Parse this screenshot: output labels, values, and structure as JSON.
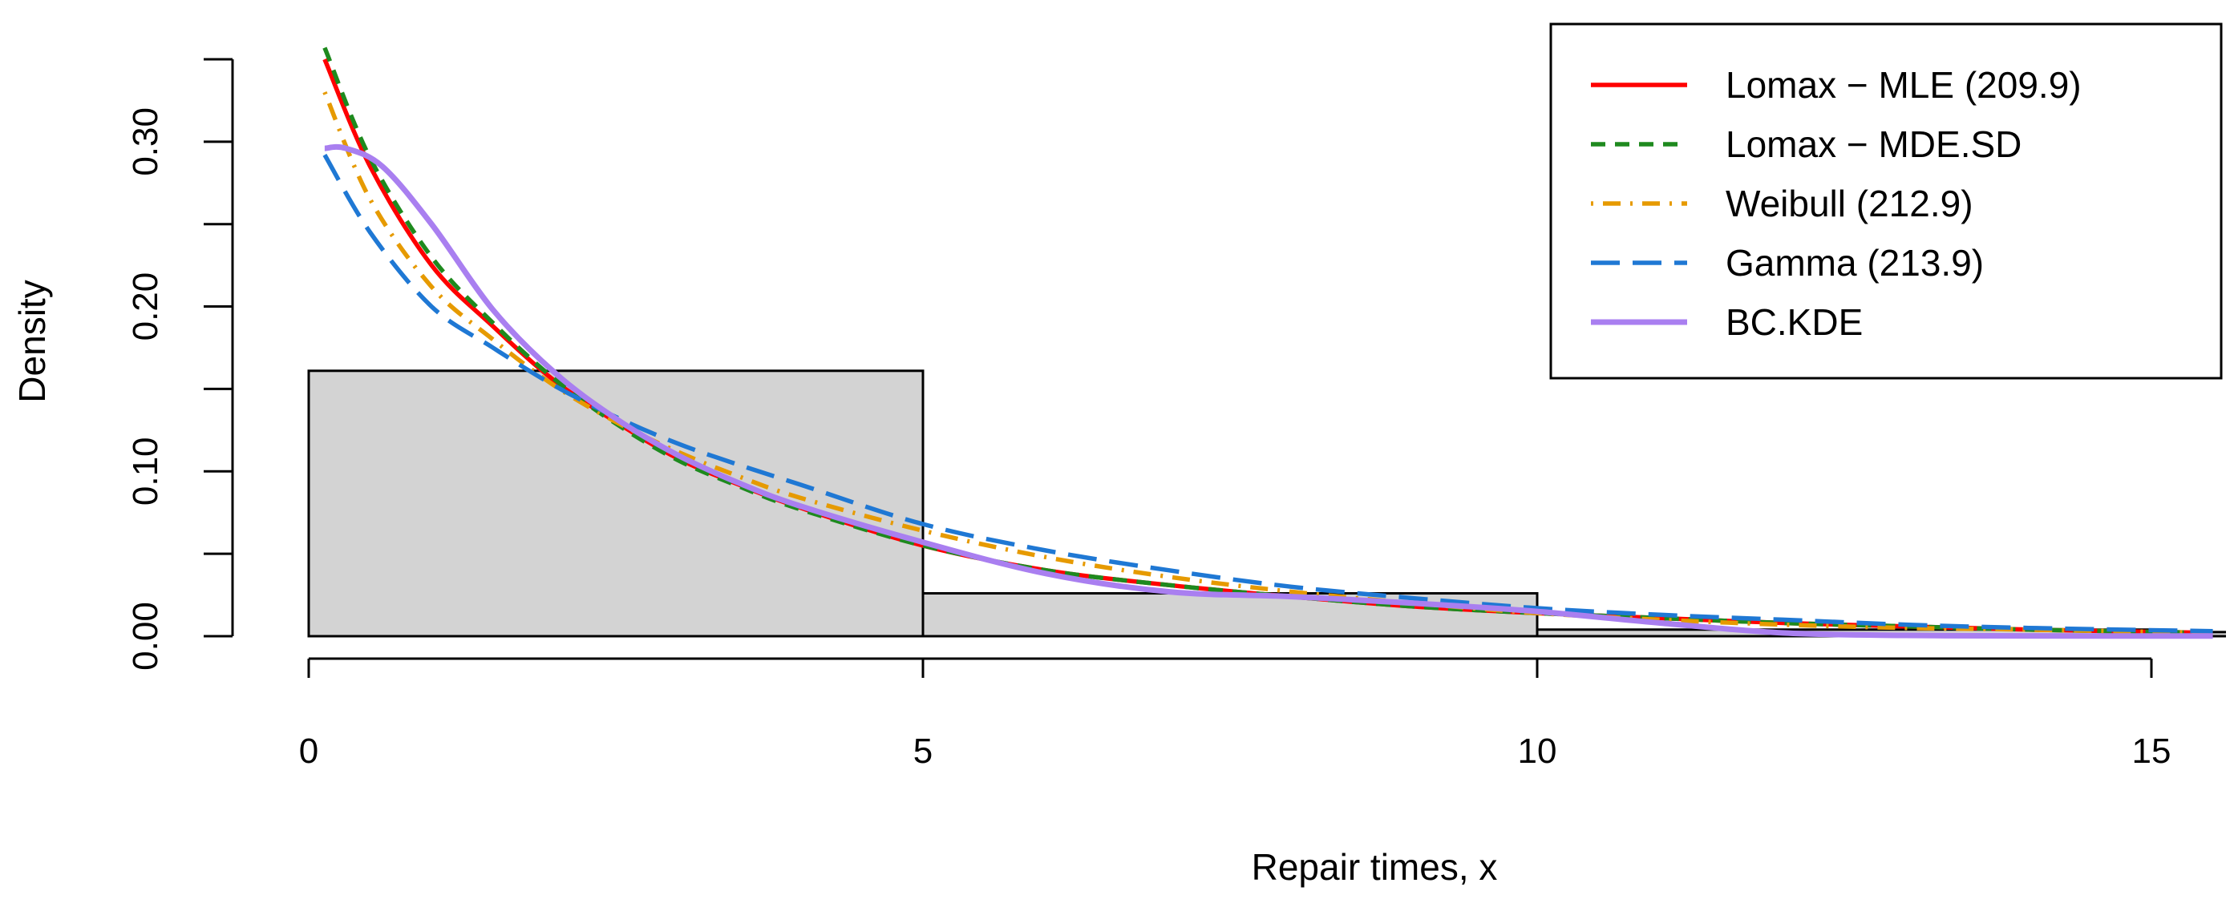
{
  "chart_data": {
    "type": "histogram",
    "title": "",
    "xlabel": "Repair times, x",
    "ylabel": "Density",
    "xlim": [
      0,
      15.5
    ],
    "ylim": [
      0,
      0.35
    ],
    "xticks": [
      0,
      5,
      10,
      15
    ],
    "xtick_labels": [
      "0",
      "5",
      "10",
      "15"
    ],
    "yticks": [
      0.0,
      0.05,
      0.1,
      0.15,
      0.2,
      0.25,
      0.3,
      0.35
    ],
    "ytick_labels": [
      "0.00",
      "",
      "0.10",
      "",
      "0.20",
      "",
      "0.30",
      ""
    ],
    "grid": false,
    "legend_position": "top-right",
    "histogram": {
      "bins": [
        [
          0,
          5
        ],
        [
          5,
          10
        ],
        [
          10,
          15
        ],
        [
          15,
          20
        ]
      ],
      "density": [
        0.161,
        0.026,
        0.004,
        0.0025
      ],
      "fill": "#d3d3d3",
      "edge": "#000000"
    },
    "series": [
      {
        "name": "Lomax − MLE (209.9)",
        "color": "#ff0000",
        "dash": "solid",
        "x": [
          0.13,
          0.5,
          1.0,
          1.5,
          2.0,
          2.5,
          3.0,
          3.5,
          4.0,
          5.0,
          6.0,
          7.0,
          8.0,
          9.0,
          10.0,
          11.0,
          12.0,
          13.0,
          14.0,
          15.5
        ],
        "y": [
          0.35,
          0.285,
          0.225,
          0.188,
          0.155,
          0.13,
          0.108,
          0.092,
          0.078,
          0.055,
          0.04,
          0.031,
          0.024,
          0.018,
          0.014,
          0.011,
          0.008,
          0.006,
          0.004,
          0.002
        ]
      },
      {
        "name": "Lomax − MDE.SD",
        "color": "#1e8a1e",
        "dash": "short",
        "x": [
          0.13,
          0.5,
          1.0,
          1.5,
          2.0,
          2.5,
          3.0,
          3.5,
          4.0,
          5.0,
          6.0,
          7.0,
          8.0,
          9.0,
          10.0,
          11.0,
          12.0,
          13.0,
          14.0,
          15.5
        ],
        "y": [
          0.357,
          0.29,
          0.23,
          0.19,
          0.156,
          0.129,
          0.107,
          0.091,
          0.077,
          0.055,
          0.04,
          0.031,
          0.024,
          0.018,
          0.014,
          0.011,
          0.008,
          0.006,
          0.004,
          0.002
        ]
      },
      {
        "name": "Weibull (212.9)",
        "color": "#e69a00",
        "dash": "dashdot",
        "x": [
          0.13,
          0.5,
          1.0,
          1.5,
          2.0,
          2.5,
          3.0,
          3.5,
          4.0,
          5.0,
          6.0,
          7.0,
          8.0,
          9.0,
          10.0,
          11.0,
          12.0,
          13.0,
          14.0,
          15.5
        ],
        "y": [
          0.33,
          0.265,
          0.212,
          0.18,
          0.152,
          0.13,
          0.112,
          0.097,
          0.084,
          0.064,
          0.048,
          0.036,
          0.027,
          0.02,
          0.014,
          0.01,
          0.007,
          0.005,
          0.004,
          0.002
        ]
      },
      {
        "name": "Gamma (213.9)",
        "color": "#1f78d4",
        "dash": "long",
        "x": [
          0.13,
          0.5,
          1.0,
          1.5,
          2.0,
          2.5,
          3.0,
          3.5,
          4.0,
          5.0,
          6.0,
          7.0,
          8.0,
          9.0,
          10.0,
          11.0,
          12.0,
          13.0,
          14.0,
          15.5
        ],
        "y": [
          0.292,
          0.245,
          0.2,
          0.175,
          0.152,
          0.133,
          0.117,
          0.104,
          0.092,
          0.068,
          0.052,
          0.04,
          0.03,
          0.023,
          0.017,
          0.013,
          0.01,
          0.007,
          0.005,
          0.003
        ]
      },
      {
        "name": "BC.KDE",
        "color": "#a97ff0",
        "dash": "solid",
        "x": [
          0.13,
          0.3,
          0.6,
          1.0,
          1.5,
          2.0,
          2.5,
          3.0,
          3.5,
          4.0,
          5.0,
          6.0,
          7.0,
          8.0,
          9.0,
          10.0,
          11.0,
          12.0,
          13.0,
          14.0,
          15.5
        ],
        "y": [
          0.296,
          0.296,
          0.285,
          0.25,
          0.198,
          0.16,
          0.132,
          0.11,
          0.093,
          0.079,
          0.057,
          0.038,
          0.027,
          0.024,
          0.02,
          0.015,
          0.008,
          0.002,
          0.0005,
          0.0002,
          0.0001
        ]
      }
    ]
  }
}
